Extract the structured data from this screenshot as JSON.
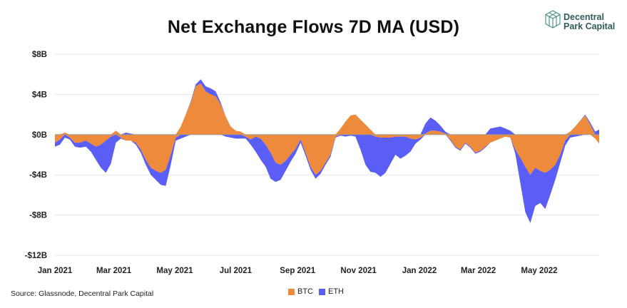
{
  "title": "Net Exchange Flows 7D MA (USD)",
  "source": "Source: Glassnode, Decentral Park Capital",
  "logo": {
    "line1": "Decentral",
    "line2": "Park Capital",
    "icon": "cube-logo-icon",
    "color": "#2f5d55"
  },
  "chart_data": {
    "type": "area",
    "stacked": true,
    "title": "Net Exchange Flows 7D MA (USD)",
    "xlabel": "",
    "ylabel": "",
    "ylim": [
      -12,
      8
    ],
    "y_ticks": [
      8,
      4,
      0,
      -4,
      -8,
      -12
    ],
    "y_tick_labels": [
      "$8B",
      "$4B",
      "$0B",
      "-$4B",
      "-$8B",
      "-$12B"
    ],
    "x_tick_labels": [
      "Jan 2021",
      "Mar 2021",
      "May 2021",
      "Jul 2021",
      "Sep 2021",
      "Nov 2021",
      "Jan 2022",
      "Mar 2022",
      "May 2022"
    ],
    "x_range": [
      "2021-01-01",
      "2022-06-30"
    ],
    "grid": true,
    "legend_position": "bottom",
    "series": [
      {
        "name": "BTC",
        "color": "#ee8a3b",
        "points": [
          [
            "2021-01-01",
            -0.8
          ],
          [
            "2021-01-06",
            -0.5
          ],
          [
            "2021-01-11",
            0.2
          ],
          [
            "2021-01-16",
            -0.3
          ],
          [
            "2021-01-21",
            -0.8
          ],
          [
            "2021-01-26",
            -0.8
          ],
          [
            "2021-02-01",
            -0.6
          ],
          [
            "2021-02-06",
            -0.9
          ],
          [
            "2021-02-11",
            -1.2
          ],
          [
            "2021-02-16",
            -1.0
          ],
          [
            "2021-02-21",
            -0.6
          ],
          [
            "2021-02-26",
            -0.2
          ],
          [
            "2021-03-03",
            0.4
          ],
          [
            "2021-03-08",
            -0.3
          ],
          [
            "2021-03-13",
            -0.6
          ],
          [
            "2021-03-18",
            -0.6
          ],
          [
            "2021-03-23",
            -0.8
          ],
          [
            "2021-03-28",
            -1.5
          ],
          [
            "2021-04-02",
            -2.5
          ],
          [
            "2021-04-07",
            -3.3
          ],
          [
            "2021-04-12",
            -3.6
          ],
          [
            "2021-04-17",
            -3.8
          ],
          [
            "2021-04-22",
            -3.5
          ],
          [
            "2021-04-27",
            -2.0
          ],
          [
            "2021-05-02",
            -0.3
          ],
          [
            "2021-05-07",
            0.8
          ],
          [
            "2021-05-12",
            2.0
          ],
          [
            "2021-05-17",
            3.2
          ],
          [
            "2021-05-22",
            4.8
          ],
          [
            "2021-05-27",
            5.1
          ],
          [
            "2021-06-01",
            4.3
          ],
          [
            "2021-06-06",
            4.0
          ],
          [
            "2021-06-11",
            3.8
          ],
          [
            "2021-06-16",
            3.0
          ],
          [
            "2021-06-21",
            1.8
          ],
          [
            "2021-06-26",
            0.8
          ],
          [
            "2021-07-01",
            0.4
          ],
          [
            "2021-07-06",
            0.3
          ],
          [
            "2021-07-11",
            -0.2
          ],
          [
            "2021-07-16",
            -0.5
          ],
          [
            "2021-07-21",
            -0.2
          ],
          [
            "2021-07-26",
            -0.4
          ],
          [
            "2021-07-31",
            -1.0
          ],
          [
            "2021-08-05",
            -1.8
          ],
          [
            "2021-08-10",
            -2.8
          ],
          [
            "2021-08-15",
            -3.0
          ],
          [
            "2021-08-20",
            -2.6
          ],
          [
            "2021-08-25",
            -2.0
          ],
          [
            "2021-08-30",
            -1.4
          ],
          [
            "2021-09-04",
            -0.5
          ],
          [
            "2021-09-09",
            -1.8
          ],
          [
            "2021-09-14",
            -3.2
          ],
          [
            "2021-09-19",
            -4.0
          ],
          [
            "2021-09-24",
            -3.6
          ],
          [
            "2021-09-29",
            -2.8
          ],
          [
            "2021-10-04",
            -2.0
          ],
          [
            "2021-10-09",
            -0.2
          ],
          [
            "2021-10-14",
            0.6
          ],
          [
            "2021-10-19",
            1.3
          ],
          [
            "2021-10-24",
            1.9
          ],
          [
            "2021-10-29",
            2.0
          ],
          [
            "2021-11-03",
            1.5
          ],
          [
            "2021-11-08",
            1.0
          ],
          [
            "2021-11-13",
            0.5
          ],
          [
            "2021-11-18",
            -0.2
          ],
          [
            "2021-11-23",
            -0.3
          ],
          [
            "2021-11-28",
            -0.3
          ],
          [
            "2021-12-03",
            -0.3
          ],
          [
            "2021-12-08",
            -0.2
          ],
          [
            "2021-12-13",
            -0.2
          ],
          [
            "2021-12-18",
            -0.2
          ],
          [
            "2021-12-23",
            -0.4
          ],
          [
            "2021-12-28",
            -0.5
          ],
          [
            "2022-01-02",
            -0.3
          ],
          [
            "2022-01-07",
            0.1
          ],
          [
            "2022-01-12",
            0.4
          ],
          [
            "2022-01-17",
            0.4
          ],
          [
            "2022-01-22",
            0.3
          ],
          [
            "2022-01-27",
            0.1
          ],
          [
            "2022-02-01",
            -0.5
          ],
          [
            "2022-02-06",
            -1.2
          ],
          [
            "2022-02-11",
            -1.5
          ],
          [
            "2022-02-16",
            -0.8
          ],
          [
            "2022-02-21",
            -1.2
          ],
          [
            "2022-02-26",
            -1.8
          ],
          [
            "2022-03-03",
            -1.6
          ],
          [
            "2022-03-08",
            -1.2
          ],
          [
            "2022-03-13",
            -0.8
          ],
          [
            "2022-03-18",
            -0.6
          ],
          [
            "2022-03-23",
            -0.4
          ],
          [
            "2022-03-28",
            -0.2
          ],
          [
            "2022-04-02",
            -0.3
          ],
          [
            "2022-04-07",
            -1.5
          ],
          [
            "2022-04-12",
            -2.3
          ],
          [
            "2022-04-17",
            -3.2
          ],
          [
            "2022-04-22",
            -4.0
          ],
          [
            "2022-04-27",
            -3.3
          ],
          [
            "2022-05-02",
            -3.6
          ],
          [
            "2022-05-07",
            -3.8
          ],
          [
            "2022-05-12",
            -3.5
          ],
          [
            "2022-05-17",
            -3.0
          ],
          [
            "2022-05-22",
            -2.0
          ],
          [
            "2022-05-27",
            -0.6
          ],
          [
            "2022-06-01",
            0.3
          ],
          [
            "2022-06-06",
            0.8
          ],
          [
            "2022-06-11",
            1.4
          ],
          [
            "2022-06-16",
            1.9
          ],
          [
            "2022-06-21",
            1.0
          ],
          [
            "2022-06-26",
            -0.4
          ],
          [
            "2022-06-30",
            -0.9
          ]
        ]
      },
      {
        "name": "ETH",
        "color": "#5b5ef5",
        "points": [
          [
            "2021-01-01",
            -0.4
          ],
          [
            "2021-01-06",
            -0.5
          ],
          [
            "2021-01-11",
            -0.3
          ],
          [
            "2021-01-16",
            -0.2
          ],
          [
            "2021-01-21",
            -0.4
          ],
          [
            "2021-01-26",
            -0.5
          ],
          [
            "2021-02-01",
            -0.6
          ],
          [
            "2021-02-06",
            -0.8
          ],
          [
            "2021-02-11",
            -1.3
          ],
          [
            "2021-02-16",
            -2.3
          ],
          [
            "2021-02-21",
            -3.2
          ],
          [
            "2021-02-26",
            -2.7
          ],
          [
            "2021-03-03",
            -0.8
          ],
          [
            "2021-03-08",
            -0.1
          ],
          [
            "2021-03-13",
            0.2
          ],
          [
            "2021-03-18",
            0.1
          ],
          [
            "2021-03-23",
            -0.2
          ],
          [
            "2021-03-28",
            -0.3
          ],
          [
            "2021-04-02",
            -0.5
          ],
          [
            "2021-04-07",
            -0.7
          ],
          [
            "2021-04-12",
            -0.9
          ],
          [
            "2021-04-17",
            -1.2
          ],
          [
            "2021-04-22",
            -1.6
          ],
          [
            "2021-04-27",
            -1.0
          ],
          [
            "2021-05-02",
            -0.3
          ],
          [
            "2021-05-07",
            -0.4
          ],
          [
            "2021-05-12",
            -0.2
          ],
          [
            "2021-05-17",
            0.1
          ],
          [
            "2021-05-22",
            0.2
          ],
          [
            "2021-05-27",
            0.4
          ],
          [
            "2021-06-01",
            0.5
          ],
          [
            "2021-06-06",
            0.6
          ],
          [
            "2021-06-11",
            0.5
          ],
          [
            "2021-06-16",
            0.2
          ],
          [
            "2021-06-21",
            -0.2
          ],
          [
            "2021-06-26",
            -0.3
          ],
          [
            "2021-07-01",
            -0.4
          ],
          [
            "2021-07-06",
            -0.4
          ],
          [
            "2021-07-11",
            -0.2
          ],
          [
            "2021-07-16",
            -0.5
          ],
          [
            "2021-07-21",
            -1.5
          ],
          [
            "2021-07-26",
            -2.1
          ],
          [
            "2021-07-31",
            -2.2
          ],
          [
            "2021-08-05",
            -2.6
          ],
          [
            "2021-08-10",
            -1.9
          ],
          [
            "2021-08-15",
            -1.5
          ],
          [
            "2021-08-20",
            -1.0
          ],
          [
            "2021-08-25",
            -0.7
          ],
          [
            "2021-08-30",
            -0.5
          ],
          [
            "2021-09-04",
            -0.3
          ],
          [
            "2021-09-09",
            -0.3
          ],
          [
            "2021-09-14",
            -0.3
          ],
          [
            "2021-09-19",
            -0.4
          ],
          [
            "2021-09-24",
            -0.3
          ],
          [
            "2021-09-29",
            -0.2
          ],
          [
            "2021-10-04",
            -0.2
          ],
          [
            "2021-10-09",
            -0.1
          ],
          [
            "2021-10-14",
            -0.1
          ],
          [
            "2021-10-19",
            -0.2
          ],
          [
            "2021-10-24",
            -0.1
          ],
          [
            "2021-10-29",
            -0.2
          ],
          [
            "2021-11-03",
            -1.5
          ],
          [
            "2021-11-08",
            -3.0
          ],
          [
            "2021-11-13",
            -3.7
          ],
          [
            "2021-11-18",
            -3.6
          ],
          [
            "2021-11-23",
            -3.9
          ],
          [
            "2021-11-28",
            -3.5
          ],
          [
            "2021-12-03",
            -2.6
          ],
          [
            "2021-12-08",
            -1.8
          ],
          [
            "2021-12-13",
            -2.2
          ],
          [
            "2021-12-18",
            -1.9
          ],
          [
            "2021-12-23",
            -1.3
          ],
          [
            "2021-12-28",
            -0.4
          ],
          [
            "2022-01-02",
            -0.2
          ],
          [
            "2022-01-07",
            1.0
          ],
          [
            "2022-01-12",
            1.3
          ],
          [
            "2022-01-17",
            1.0
          ],
          [
            "2022-01-22",
            0.6
          ],
          [
            "2022-01-27",
            0.2
          ],
          [
            "2022-02-01",
            -0.1
          ],
          [
            "2022-02-06",
            -0.1
          ],
          [
            "2022-02-11",
            -0.1
          ],
          [
            "2022-02-16",
            -0.1
          ],
          [
            "2022-02-21",
            -0.1
          ],
          [
            "2022-02-26",
            -0.1
          ],
          [
            "2022-03-03",
            -0.1
          ],
          [
            "2022-03-08",
            -0.1
          ],
          [
            "2022-03-13",
            0.6
          ],
          [
            "2022-03-18",
            0.7
          ],
          [
            "2022-03-23",
            0.8
          ],
          [
            "2022-03-28",
            0.6
          ],
          [
            "2022-04-02",
            0.4
          ],
          [
            "2022-04-07",
            -0.4
          ],
          [
            "2022-04-12",
            -2.5
          ],
          [
            "2022-04-17",
            -4.5
          ],
          [
            "2022-04-22",
            -4.8
          ],
          [
            "2022-04-27",
            -3.8
          ],
          [
            "2022-05-02",
            -3.2
          ],
          [
            "2022-05-07",
            -3.6
          ],
          [
            "2022-05-12",
            -2.5
          ],
          [
            "2022-05-17",
            -1.5
          ],
          [
            "2022-05-22",
            -0.8
          ],
          [
            "2022-05-27",
            -0.5
          ],
          [
            "2022-06-01",
            -0.3
          ],
          [
            "2022-06-06",
            -0.2
          ],
          [
            "2022-06-11",
            -0.1
          ],
          [
            "2022-06-16",
            0.1
          ],
          [
            "2022-06-21",
            0.2
          ],
          [
            "2022-06-26",
            0.3
          ],
          [
            "2022-06-30",
            0.5
          ]
        ]
      }
    ]
  }
}
